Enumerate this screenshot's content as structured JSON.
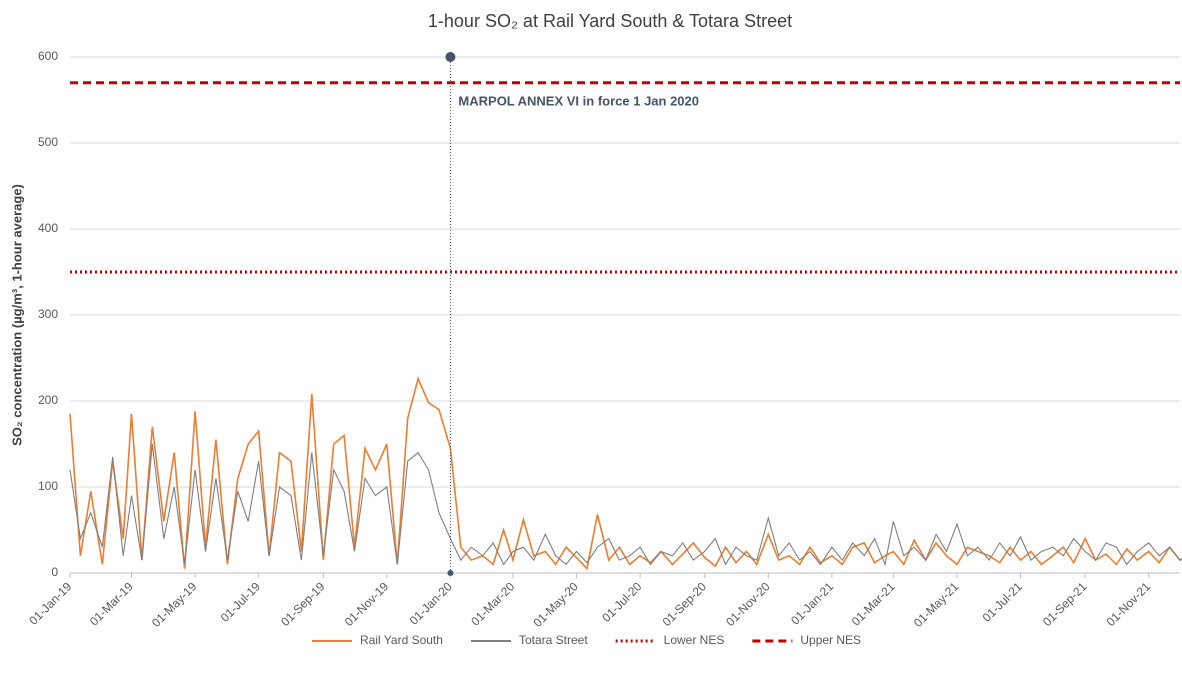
{
  "chart_data": {
    "type": "line",
    "title": "1-hour SO₂ at Rail Yard South & Totara Street",
    "y_label": "SO₂ concentration (µg/m³, 1-hour average)",
    "x": [
      "2019-01-01",
      "2019-01-11",
      "2019-01-21",
      "2019-02-01",
      "2019-02-11",
      "2019-02-21",
      "2019-03-01",
      "2019-03-11",
      "2019-03-21",
      "2019-04-01",
      "2019-04-11",
      "2019-04-21",
      "2019-05-01",
      "2019-05-11",
      "2019-05-21",
      "2019-06-01",
      "2019-06-11",
      "2019-06-21",
      "2019-07-01",
      "2019-07-11",
      "2019-07-21",
      "2019-08-01",
      "2019-08-11",
      "2019-08-21",
      "2019-09-01",
      "2019-09-11",
      "2019-09-21",
      "2019-10-01",
      "2019-10-11",
      "2019-10-21",
      "2019-11-01",
      "2019-11-11",
      "2019-11-21",
      "2019-12-01",
      "2019-12-11",
      "2019-12-21",
      "2020-01-01",
      "2020-01-11",
      "2020-01-21",
      "2020-02-01",
      "2020-02-11",
      "2020-02-21",
      "2020-03-01",
      "2020-03-11",
      "2020-03-21",
      "2020-04-01",
      "2020-04-11",
      "2020-04-21",
      "2020-05-01",
      "2020-05-11",
      "2020-05-21",
      "2020-06-01",
      "2020-06-11",
      "2020-06-21",
      "2020-07-01",
      "2020-07-11",
      "2020-07-21",
      "2020-08-01",
      "2020-08-11",
      "2020-08-21",
      "2020-09-01",
      "2020-09-11",
      "2020-09-21",
      "2020-10-01",
      "2020-10-11",
      "2020-10-21",
      "2020-11-01",
      "2020-11-11",
      "2020-11-21",
      "2020-12-01",
      "2020-12-11",
      "2020-12-21",
      "2021-01-01",
      "2021-01-11",
      "2021-01-21",
      "2021-02-01",
      "2021-02-11",
      "2021-02-21",
      "2021-03-01",
      "2021-03-11",
      "2021-03-21",
      "2021-04-01",
      "2021-04-11",
      "2021-04-21",
      "2021-05-01",
      "2021-05-11",
      "2021-05-21",
      "2021-06-01",
      "2021-06-11",
      "2021-06-21",
      "2021-07-01",
      "2021-07-11",
      "2021-07-21",
      "2021-08-01",
      "2021-08-11",
      "2021-08-21",
      "2021-09-01",
      "2021-09-11",
      "2021-09-21",
      "2021-10-01",
      "2021-10-11",
      "2021-10-21",
      "2021-11-01",
      "2021-11-11",
      "2021-11-21",
      "2021-12-01",
      "2021-12-11",
      "2021-12-21"
    ],
    "series": [
      {
        "name": "Rail Yard South",
        "color": "#ed7d31",
        "values": [
          185,
          20,
          95,
          10,
          130,
          40,
          185,
          15,
          170,
          60,
          140,
          5,
          188,
          30,
          155,
          10,
          110,
          150,
          165,
          20,
          140,
          130,
          25,
          208,
          15,
          150,
          160,
          30,
          145,
          120,
          150,
          10,
          180,
          226,
          198,
          190,
          145,
          30,
          15,
          20,
          10,
          50,
          15,
          62,
          20,
          25,
          10,
          30,
          18,
          5,
          68,
          15,
          30,
          10,
          20,
          12,
          25,
          10,
          22,
          35,
          18,
          8,
          30,
          12,
          25,
          10,
          45,
          15,
          20,
          10,
          30,
          12,
          20,
          10,
          30,
          35,
          12,
          20,
          25,
          10,
          38,
          15,
          35,
          20,
          10,
          30,
          25,
          20,
          12,
          30,
          15,
          25,
          10,
          20,
          30,
          12,
          40,
          15,
          22,
          10,
          28,
          15,
          25,
          12,
          30,
          15,
          20,
          10
        ]
      },
      {
        "name": "Totara Street",
        "color": "#7f7f7f",
        "values": [
          120,
          40,
          70,
          30,
          135,
          20,
          90,
          15,
          150,
          40,
          100,
          10,
          120,
          25,
          110,
          15,
          95,
          60,
          130,
          20,
          100,
          90,
          15,
          140,
          20,
          120,
          95,
          25,
          110,
          90,
          100,
          10,
          130,
          140,
          120,
          70,
          40,
          15,
          30,
          20,
          35,
          10,
          25,
          30,
          15,
          45,
          20,
          10,
          25,
          12,
          30,
          40,
          15,
          20,
          30,
          10,
          25,
          20,
          35,
          15,
          25,
          40,
          10,
          30,
          20,
          15,
          64,
          20,
          35,
          15,
          25,
          10,
          30,
          15,
          35,
          20,
          40,
          10,
          60,
          20,
          30,
          15,
          45,
          25,
          57,
          20,
          30,
          15,
          35,
          20,
          42,
          15,
          25,
          30,
          20,
          40,
          25,
          15,
          35,
          30,
          10,
          25,
          35,
          20,
          30,
          15,
          25,
          28
        ]
      }
    ],
    "reference_lines": [
      {
        "name": "Lower NES",
        "value": 350,
        "color": "#c00000",
        "style": "dotted"
      },
      {
        "name": "Upper NES",
        "value": 570,
        "color": "#c00000",
        "style": "dashed"
      }
    ],
    "annotation": {
      "text": "MARPOL ANNEX VI in force 1 Jan 2020",
      "x": "2020-01-01",
      "y_range": [
        0,
        600
      ],
      "color": "#44546a"
    },
    "xlim": [
      "2019-01-01",
      "2021-12-01"
    ],
    "xticks": [
      {
        "value": "2019-01-01",
        "label": "01-Jan-19"
      },
      {
        "value": "2019-03-01",
        "label": "01-Mar-19"
      },
      {
        "value": "2019-05-01",
        "label": "01-May-19"
      },
      {
        "value": "2019-07-01",
        "label": "01-Jul-19"
      },
      {
        "value": "2019-09-01",
        "label": "01-Sep-19"
      },
      {
        "value": "2019-11-01",
        "label": "01-Nov-19"
      },
      {
        "value": "2020-01-01",
        "label": "01-Jan-20"
      },
      {
        "value": "2020-03-01",
        "label": "01-Mar-20"
      },
      {
        "value": "2020-05-01",
        "label": "01-May-20"
      },
      {
        "value": "2020-07-01",
        "label": "01-Jul-20"
      },
      {
        "value": "2020-09-01",
        "label": "01-Sep-20"
      },
      {
        "value": "2020-11-01",
        "label": "01-Nov-20"
      },
      {
        "value": "2021-01-01",
        "label": "01-Jan-21"
      },
      {
        "value": "2021-03-01",
        "label": "01-Mar-21"
      },
      {
        "value": "2021-05-01",
        "label": "01-May-21"
      },
      {
        "value": "2021-07-01",
        "label": "01-Jul-21"
      },
      {
        "value": "2021-09-01",
        "label": "01-Sep-21"
      },
      {
        "value": "2021-11-01",
        "label": "01-Nov-21"
      }
    ],
    "ylim": [
      0,
      600
    ],
    "yticks": [
      0,
      100,
      200,
      300,
      400,
      500,
      600
    ],
    "grid": true
  }
}
